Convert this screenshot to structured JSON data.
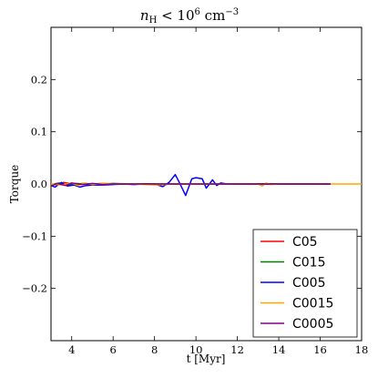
{
  "chart_data": {
    "type": "line",
    "title_main": "n",
    "title_sub": "H",
    "title_mid": " < 10",
    "title_exp": "6",
    "title_unit": " cm",
    "title_unit_exp": "−3",
    "xlabel": "t [Myr]",
    "ylabel": "Torque",
    "xlim": [
      3,
      18
    ],
    "ylim": [
      -0.3,
      0.3
    ],
    "x_ticks": [
      4,
      6,
      8,
      10,
      12,
      14,
      16,
      18
    ],
    "x_tick_labels": [
      "4",
      "6",
      "8",
      "10",
      "12",
      "14",
      "16",
      "18"
    ],
    "y_ticks": [
      0.2,
      0.1,
      0.0,
      -0.1,
      -0.2
    ],
    "y_tick_labels": [
      "0.2",
      "0.1",
      "0.0",
      "−0.1",
      "−0.2"
    ],
    "legend_position": "lower-right",
    "series": [
      {
        "name": "C05",
        "color": "#ff0000",
        "x": [
          3,
          3.3,
          3.6,
          3.9,
          4.2,
          4.5,
          5,
          5.5,
          6,
          7,
          8,
          9,
          10,
          11,
          12,
          13,
          14,
          15,
          16,
          16.5
        ],
        "y": [
          0,
          -0.002,
          0.003,
          0.001,
          -0.002,
          0.001,
          0,
          0.001,
          0,
          0,
          0,
          0,
          0,
          0,
          0,
          0,
          0,
          0,
          0,
          0
        ]
      },
      {
        "name": "C015",
        "color": "#008000",
        "x": [
          3,
          3.4,
          3.8,
          4.2,
          4.6,
          5,
          5.5,
          6,
          7,
          8,
          9,
          10,
          11,
          12,
          13,
          14,
          15,
          16,
          16.5
        ],
        "y": [
          -0.001,
          0.002,
          -0.002,
          0.001,
          0,
          -0.001,
          0,
          0.001,
          0,
          0,
          0,
          0,
          0,
          0,
          0,
          0,
          0,
          0,
          0
        ]
      },
      {
        "name": "C005",
        "color": "#0000ff",
        "x": [
          3,
          3.2,
          3.5,
          3.8,
          4.1,
          4.4,
          4.7,
          5,
          5.5,
          6,
          6.5,
          7,
          7.5,
          8,
          8.4,
          8.7,
          9,
          9.2,
          9.5,
          9.8,
          10,
          10.3,
          10.5,
          10.8,
          11,
          11.2,
          11.5,
          12,
          13,
          14,
          15,
          16,
          16.5
        ],
        "y": [
          -0.003,
          -0.006,
          0.003,
          -0.004,
          -0.002,
          -0.006,
          -0.003,
          -0.002,
          -0.002,
          -0.001,
          0,
          -0.001,
          0,
          0,
          -0.005,
          0.003,
          0.018,
          0.003,
          -0.022,
          0.01,
          0.012,
          0.01,
          -0.008,
          0.008,
          -0.003,
          0.002,
          0,
          0,
          0,
          0,
          0,
          0,
          0
        ]
      },
      {
        "name": "C0015",
        "color": "#ffa500",
        "x": [
          3,
          3.5,
          4,
          4.3,
          4.6,
          5,
          5.5,
          6,
          7,
          8,
          9,
          10,
          11,
          12,
          13,
          13.2,
          13.4,
          13.6,
          14,
          15,
          16,
          17,
          18
        ],
        "y": [
          0,
          -0.002,
          0.002,
          -0.003,
          0.002,
          -0.001,
          0.001,
          0,
          0,
          -0.002,
          0,
          0,
          0,
          0,
          0,
          -0.004,
          0.002,
          -0.001,
          0,
          0,
          0,
          0,
          0
        ]
      },
      {
        "name": "C0005",
        "color": "#800080",
        "x": [
          3,
          3.3,
          3.7,
          4,
          4.5,
          5,
          5.5,
          6,
          7,
          8,
          9,
          10,
          11,
          12,
          13,
          14,
          15,
          16,
          16.5
        ],
        "y": [
          -0.004,
          0.001,
          -0.003,
          0.002,
          -0.001,
          0.001,
          -0.001,
          0,
          0,
          0,
          0,
          0,
          0,
          0,
          0,
          0,
          0,
          0,
          0
        ]
      }
    ]
  }
}
